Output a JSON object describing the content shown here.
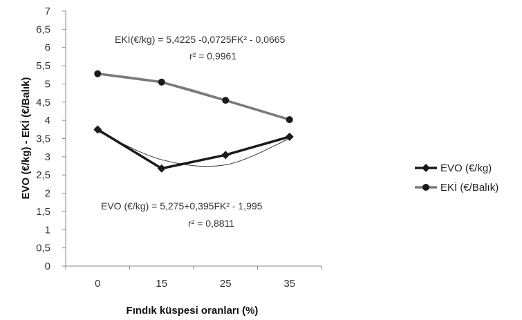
{
  "chart_data": {
    "type": "line",
    "categories": [
      "0",
      "15",
      "25",
      "35"
    ],
    "series": [
      {
        "name": "EVO (€/kg)",
        "values": [
          3.75,
          2.68,
          3.05,
          3.55
        ],
        "color": "#1a1a1a",
        "marker": "diamond"
      },
      {
        "name": "EKİ (€/Balık)",
        "values": [
          5.28,
          5.05,
          4.55,
          4.02
        ],
        "color": "#7a7a7a",
        "marker": "circle"
      }
    ],
    "trendlines": [
      {
        "series": "EVO (€/kg)",
        "values": [
          3.7,
          2.92,
          2.78,
          3.5
        ],
        "color": "#333333"
      },
      {
        "series": "EKİ (€/Balık)",
        "values": [
          5.3,
          5.06,
          4.57,
          4.0
        ],
        "color": "#999999"
      }
    ],
    "xlabel": "Fındık küspesi oranları (%)",
    "ylabel": "EVO (€/kg) - EKİ (€/Balık)",
    "ylim": [
      0,
      7
    ],
    "yticks": [
      "0",
      "0,5",
      "1",
      "1,5",
      "2",
      "2,5",
      "3",
      "3,5",
      "4",
      "4,5",
      "5",
      "5,5",
      "6",
      "6,5",
      "7"
    ],
    "grid": false,
    "legend_position": "right",
    "annotations": {
      "eki_equation": "EKİ(€/kg) = 5,4225 -0,0725FK² - 0,0665",
      "eki_r2": "r² = 0,9961",
      "evo_equation": "EVO (€/kg) = 5,275+0,395FK² - 1,995",
      "evo_r2": "r² = 0,8811"
    }
  }
}
